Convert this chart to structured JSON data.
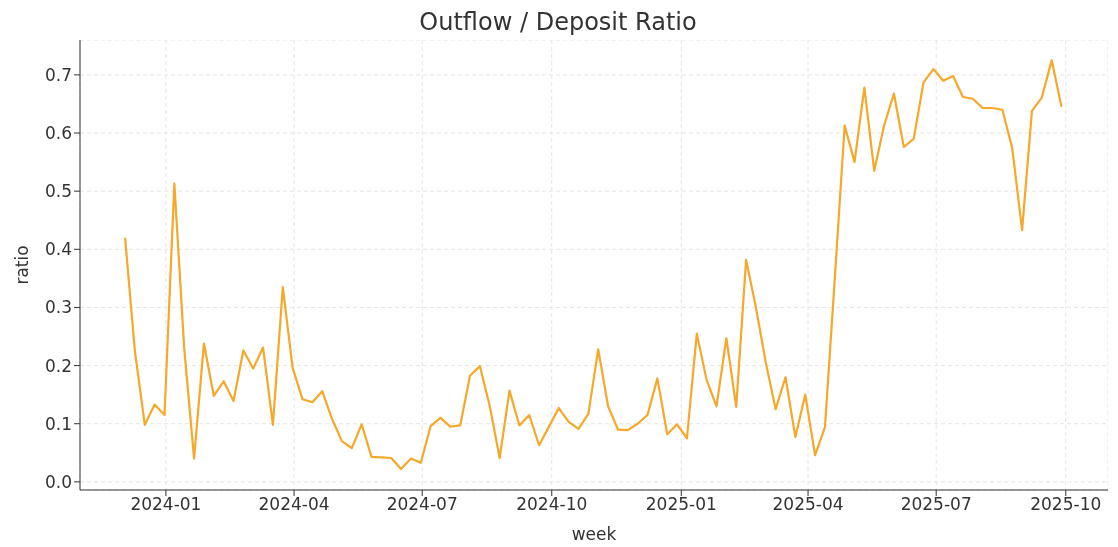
{
  "chart_data": {
    "type": "line",
    "title": "Outflow / Deposit Ratio",
    "xlabel": "week",
    "ylabel": "ratio",
    "grid": true,
    "legend": false,
    "marker": "none",
    "line_style": "solid",
    "xlim": [
      "2023-11-01",
      "2025-10-31"
    ],
    "xticks": [
      {
        "value": "2024-01-01",
        "label": "2024-01"
      },
      {
        "value": "2024-04-01",
        "label": "2024-04"
      },
      {
        "value": "2024-07-01",
        "label": "2024-07"
      },
      {
        "value": "2024-10-01",
        "label": "2024-10"
      },
      {
        "value": "2025-01-01",
        "label": "2025-01"
      },
      {
        "value": "2025-04-01",
        "label": "2025-04"
      },
      {
        "value": "2025-07-01",
        "label": "2025-07"
      },
      {
        "value": "2025-10-01",
        "label": "2025-10"
      }
    ],
    "ylim": [
      -0.014,
      0.76
    ],
    "yticks": [
      {
        "value": 0,
        "label": "0.0"
      },
      0.1,
      0.2,
      0.3,
      0.4,
      0.5,
      0.6,
      0.7
    ],
    "x": [
      "2023-12-03",
      "2023-12-10",
      "2023-12-17",
      "2023-12-24",
      "2023-12-31",
      "2024-01-07",
      "2024-01-14",
      "2024-01-21",
      "2024-01-28",
      "2024-02-04",
      "2024-02-11",
      "2024-02-18",
      "2024-02-25",
      "2024-03-03",
      "2024-03-10",
      "2024-03-17",
      "2024-03-24",
      "2024-03-31",
      "2024-04-07",
      "2024-04-14",
      "2024-04-21",
      "2024-04-28",
      "2024-05-05",
      "2024-05-12",
      "2024-05-19",
      "2024-05-26",
      "2024-06-02",
      "2024-06-09",
      "2024-06-16",
      "2024-06-23",
      "2024-06-30",
      "2024-07-07",
      "2024-07-14",
      "2024-07-21",
      "2024-07-28",
      "2024-08-04",
      "2024-08-11",
      "2024-08-18",
      "2024-08-25",
      "2024-09-01",
      "2024-09-08",
      "2024-09-15",
      "2024-09-22",
      "2024-09-29",
      "2024-10-06",
      "2024-10-13",
      "2024-10-20",
      "2024-10-27",
      "2024-11-03",
      "2024-11-10",
      "2024-11-17",
      "2024-11-24",
      "2024-12-01",
      "2024-12-08",
      "2024-12-15",
      "2024-12-22",
      "2024-12-29",
      "2025-01-05",
      "2025-01-12",
      "2025-01-19",
      "2025-01-26",
      "2025-02-02",
      "2025-02-09",
      "2025-02-16",
      "2025-02-23",
      "2025-03-02",
      "2025-03-09",
      "2025-03-16",
      "2025-03-23",
      "2025-03-30",
      "2025-04-06",
      "2025-04-13",
      "2025-04-20",
      "2025-04-27",
      "2025-05-04",
      "2025-05-11",
      "2025-05-18",
      "2025-05-25",
      "2025-06-01",
      "2025-06-08",
      "2025-06-15",
      "2025-06-22",
      "2025-06-29",
      "2025-07-06",
      "2025-07-13",
      "2025-07-20",
      "2025-07-27",
      "2025-08-03",
      "2025-08-10",
      "2025-08-17",
      "2025-08-24",
      "2025-08-31",
      "2025-09-07",
      "2025-09-14",
      "2025-09-21",
      "2025-09-28"
    ],
    "series": [
      {
        "color": "#f5a82a",
        "values": [
          0.42,
          0.225,
          0.098,
          0.133,
          0.115,
          0.513,
          0.23,
          0.04,
          0.238,
          0.148,
          0.173,
          0.139,
          0.226,
          0.195,
          0.231,
          0.098,
          0.335,
          0.196,
          0.142,
          0.137,
          0.156,
          0.108,
          0.07,
          0.058,
          0.099,
          0.043,
          0.042,
          0.041,
          0.022,
          0.04,
          0.033,
          0.096,
          0.11,
          0.095,
          0.097,
          0.183,
          0.199,
          0.13,
          0.041,
          0.157,
          0.097,
          0.115,
          0.063,
          0.095,
          0.127,
          0.103,
          0.091,
          0.117,
          0.228,
          0.13,
          0.09,
          0.089,
          0.1,
          0.115,
          0.178,
          0.082,
          0.099,
          0.075,
          0.255,
          0.175,
          0.13,
          0.247,
          0.129,
          0.382,
          0.3,
          0.205,
          0.125,
          0.18,
          0.077,
          0.15,
          0.046,
          0.094,
          0.35,
          0.613,
          0.55,
          0.678,
          0.535,
          0.613,
          0.668,
          0.576,
          0.59,
          0.687,
          0.71,
          0.69,
          0.698,
          0.662,
          0.659,
          0.643,
          0.643,
          0.64,
          0.574,
          0.433,
          0.638,
          0.661,
          0.725,
          0.645
        ]
      }
    ]
  }
}
